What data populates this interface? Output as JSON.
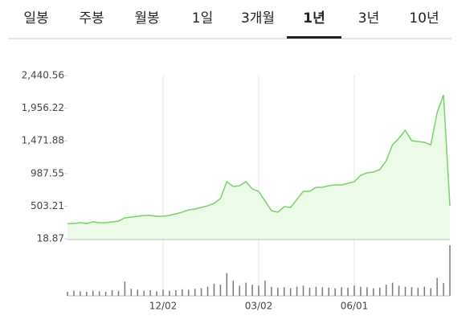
{
  "tabs": [
    "일봉",
    "주봉",
    "월봉",
    "1일",
    "3개월",
    "1년",
    "3년",
    "10년"
  ],
  "selected_tab": 5,
  "chart_data": {
    "type": "area",
    "x": [
      0,
      1,
      2,
      3,
      4,
      5,
      6,
      7,
      8,
      9,
      10,
      11,
      12,
      13,
      14,
      15,
      16,
      17,
      18,
      19,
      20,
      21,
      22,
      23,
      24,
      25,
      26,
      27,
      28,
      29,
      30,
      31,
      32,
      33,
      34,
      35,
      36,
      37,
      38,
      39,
      40,
      41,
      42,
      43,
      44,
      45,
      46,
      47,
      48,
      49,
      50,
      51,
      52,
      53,
      54,
      55,
      56,
      57,
      58,
      59,
      60
    ],
    "series": [
      {
        "color": "#7ccf6c",
        "values": [
          245,
          245,
          257,
          245,
          270,
          257,
          257,
          270,
          281,
          329,
          341,
          353,
          365,
          365,
          353,
          353,
          365,
          389,
          413,
          448,
          460,
          484,
          508,
          544,
          615,
          866,
          794,
          806,
          866,
          758,
          722,
          579,
          436,
          413,
          496,
          484,
          603,
          722,
          722,
          782,
          782,
          806,
          818,
          818,
          842,
          866,
          961,
          997,
          1009,
          1045,
          1176,
          1414,
          1510,
          1629,
          1474,
          1462,
          1450,
          1414,
          1892,
          2154,
          508
        ]
      }
    ],
    "xlim": [
      0,
      60
    ],
    "xticks": [
      {
        "value": 15,
        "label": "12/02"
      },
      {
        "value": 30,
        "label": "03/02"
      },
      {
        "value": 45,
        "label": "06/01"
      }
    ],
    "ylim": [
      18.87,
      2440.56
    ],
    "yticks": [
      {
        "value": 2440.56,
        "label": "2,440.56"
      },
      {
        "value": 1956.22,
        "label": "1,956.22"
      },
      {
        "value": 1471.88,
        "label": "1,471.88"
      },
      {
        "value": 987.55,
        "label": "987.55"
      },
      {
        "value": 503.21,
        "label": "503.21"
      },
      18.87
    ],
    "volume": {
      "color": "#777777",
      "ylim": [
        0,
        100
      ],
      "values": [
        8,
        10,
        9,
        8,
        10,
        9,
        8,
        11,
        10,
        28,
        14,
        12,
        10,
        11,
        9,
        12,
        10,
        11,
        13,
        12,
        14,
        15,
        18,
        24,
        22,
        45,
        30,
        20,
        26,
        22,
        20,
        30,
        18,
        16,
        17,
        15,
        18,
        20,
        16,
        18,
        17,
        16,
        15,
        17,
        16,
        20,
        18,
        17,
        15,
        16,
        22,
        26,
        20,
        18,
        17,
        16,
        18,
        15,
        35,
        25,
        100
      ]
    }
  }
}
